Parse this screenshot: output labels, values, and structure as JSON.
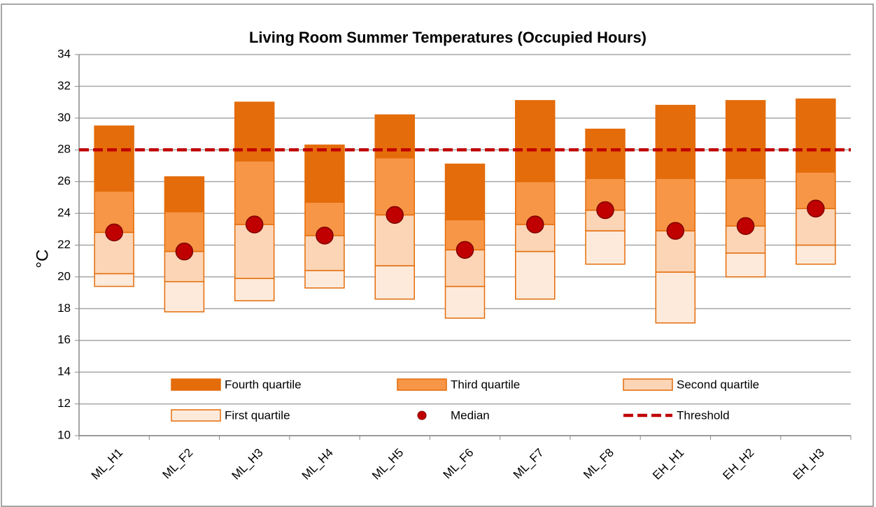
{
  "chart_data": {
    "type": "box",
    "title": "Living Room Summer Temperatures (Occupied Hours)",
    "y_label": "°C",
    "categories": [
      "ML_H1",
      "ML_F2",
      "ML_H3",
      "ML_H4",
      "ML_H5",
      "ML_F6",
      "ML_F7",
      "ML_F8",
      "EH_H1",
      "EH_H2",
      "EH_H3"
    ],
    "min": [
      19.4,
      17.8,
      18.5,
      19.3,
      18.6,
      17.4,
      18.6,
      20.8,
      17.1,
      20.0,
      20.8
    ],
    "q1": [
      20.2,
      19.7,
      19.9,
      20.4,
      20.7,
      19.4,
      21.6,
      22.9,
      20.3,
      21.5,
      22.0
    ],
    "median": [
      22.8,
      21.6,
      23.3,
      22.6,
      23.9,
      21.7,
      23.3,
      24.2,
      22.9,
      23.2,
      24.3
    ],
    "q3": [
      25.4,
      24.1,
      27.3,
      24.7,
      27.5,
      23.6,
      26.0,
      26.2,
      26.2,
      26.2,
      26.6
    ],
    "max": [
      29.5,
      26.3,
      31.0,
      28.3,
      30.2,
      27.1,
      31.1,
      29.3,
      30.8,
      31.1,
      31.2
    ],
    "threshold": 28,
    "legend": [
      {
        "name": "Fourth quartile",
        "color": "#E46C0A"
      },
      {
        "name": "Third quartile",
        "color": "#F79646"
      },
      {
        "name": "Second quartile",
        "color": "#FBD5B5"
      },
      {
        "name": "First quartile",
        "color": "#FDEADA"
      },
      {
        "name": "Median",
        "color": "#C00000"
      },
      {
        "name": "Threshold",
        "color": "#C00000"
      }
    ],
    "ylim": [
      10,
      34
    ],
    "yticks": [
      10,
      12,
      14,
      16,
      18,
      20,
      22,
      24,
      26,
      28,
      30,
      32,
      34
    ],
    "grid": true
  }
}
